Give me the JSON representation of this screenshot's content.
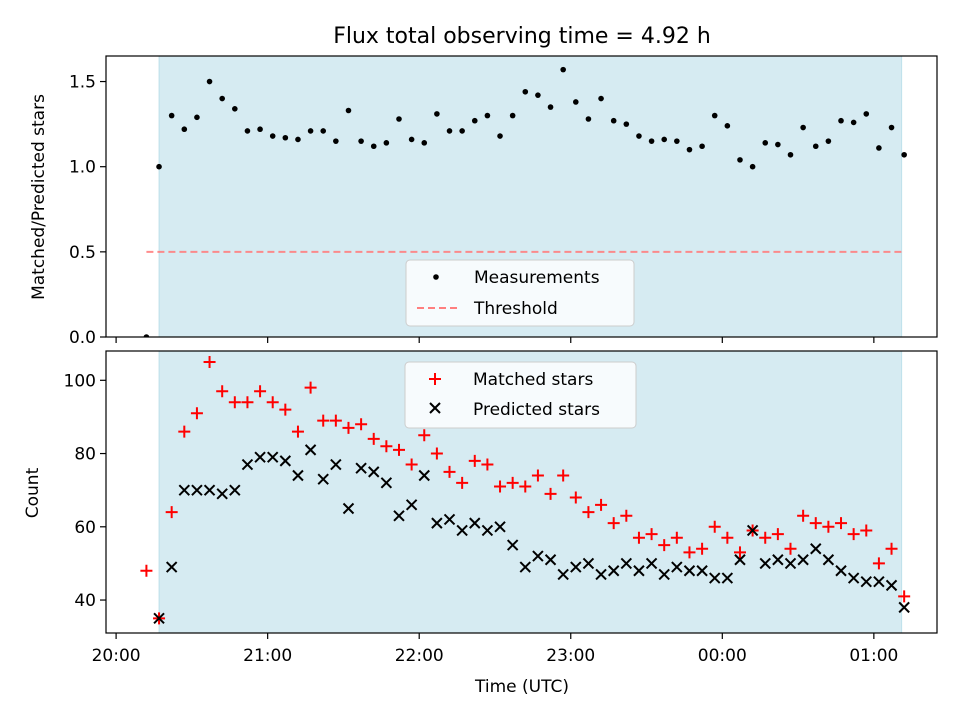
{
  "title": "Flux total observing time = 4.92 h",
  "xlabel": "Time (UTC)",
  "xticks": [
    "20:00",
    "21:00",
    "22:00",
    "23:00",
    "00:00",
    "01:00"
  ],
  "chart_data": [
    {
      "type": "scatter",
      "ylabel": "Matched/Predicted stars",
      "ylim": [
        0,
        1.65
      ],
      "yticks": [
        "0.0",
        "0.5",
        "1.0",
        "1.5"
      ],
      "shaded_interval": [
        "20:17",
        "01:11"
      ],
      "legend": [
        "Measurements",
        "Threshold"
      ],
      "legend_position": "lower center",
      "threshold": {
        "name": "Threshold",
        "value": 0.5,
        "x_range": [
          "20:12",
          "01:11"
        ],
        "color": "#ff7f7f"
      },
      "series": [
        {
          "name": "Measurements",
          "x": [
            "20:12",
            "20:17",
            "20:22",
            "20:27",
            "20:32",
            "20:37",
            "20:42",
            "20:47",
            "20:52",
            "20:57",
            "21:02",
            "21:07",
            "21:12",
            "21:17",
            "21:22",
            "21:27",
            "21:32",
            "21:37",
            "21:42",
            "21:47",
            "21:52",
            "21:57",
            "22:02",
            "22:07",
            "22:12",
            "22:17",
            "22:22",
            "22:27",
            "22:32",
            "22:37",
            "22:42",
            "22:47",
            "22:52",
            "22:57",
            "23:02",
            "23:07",
            "23:12",
            "23:17",
            "23:22",
            "23:27",
            "23:32",
            "23:37",
            "23:42",
            "23:47",
            "23:52",
            "23:57",
            "00:02",
            "00:07",
            "00:12",
            "00:17",
            "00:22",
            "00:27",
            "00:32",
            "00:37",
            "00:42",
            "00:47",
            "00:52",
            "00:57",
            "01:02",
            "01:07",
            "01:12"
          ],
          "y": [
            0.0,
            1.0,
            1.3,
            1.22,
            1.29,
            1.5,
            1.4,
            1.34,
            1.21,
            1.22,
            1.18,
            1.17,
            1.16,
            1.21,
            1.21,
            1.15,
            1.33,
            1.15,
            1.12,
            1.14,
            1.28,
            1.16,
            1.14,
            1.31,
            1.21,
            1.21,
            1.27,
            1.3,
            1.18,
            1.3,
            1.44,
            1.42,
            1.35,
            1.57,
            1.38,
            1.28,
            1.4,
            1.27,
            1.25,
            1.18,
            1.15,
            1.16,
            1.15,
            1.1,
            1.12,
            1.3,
            1.24,
            1.04,
            1.0,
            1.14,
            1.13,
            1.07,
            1.23,
            1.12,
            1.15,
            1.27,
            1.26,
            1.31,
            1.11,
            1.23,
            1.07
          ],
          "color": "#000000",
          "marker": "dot"
        }
      ]
    },
    {
      "type": "scatter",
      "ylabel": "Count",
      "ylim": [
        31,
        108
      ],
      "yticks": [
        "40",
        "60",
        "80",
        "100"
      ],
      "shaded_interval": [
        "20:17",
        "01:11"
      ],
      "legend": [
        "Matched stars",
        "Predicted stars"
      ],
      "legend_position": "upper center",
      "series": [
        {
          "name": "Matched stars",
          "x": [
            "20:12",
            "20:17",
            "20:22",
            "20:27",
            "20:32",
            "20:37",
            "20:42",
            "20:47",
            "20:52",
            "20:57",
            "21:02",
            "21:07",
            "21:12",
            "21:17",
            "21:22",
            "21:27",
            "21:32",
            "21:37",
            "21:42",
            "21:47",
            "21:52",
            "21:57",
            "22:02",
            "22:07",
            "22:12",
            "22:17",
            "22:22",
            "22:27",
            "22:32",
            "22:37",
            "22:42",
            "22:47",
            "22:52",
            "22:57",
            "23:02",
            "23:07",
            "23:12",
            "23:17",
            "23:22",
            "23:27",
            "23:32",
            "23:37",
            "23:42",
            "23:47",
            "23:52",
            "23:57",
            "00:02",
            "00:07",
            "00:12",
            "00:17",
            "00:22",
            "00:27",
            "00:32",
            "00:37",
            "00:42",
            "00:47",
            "00:52",
            "00:57",
            "01:02",
            "01:07",
            "01:12"
          ],
          "y": [
            48,
            35,
            64,
            86,
            91,
            105,
            97,
            94,
            94,
            97,
            94,
            92,
            86,
            98,
            89,
            89,
            87,
            88,
            84,
            82,
            81,
            77,
            85,
            80,
            75,
            72,
            78,
            77,
            71,
            72,
            71,
            74,
            69,
            74,
            68,
            64,
            66,
            61,
            63,
            57,
            58,
            55,
            57,
            53,
            54,
            60,
            57,
            53,
            59,
            57,
            58,
            54,
            63,
            61,
            60,
            61,
            58,
            59,
            50,
            54,
            41
          ],
          "color": "#ff0000",
          "marker": "plus"
        },
        {
          "name": "Predicted stars",
          "x": [
            "20:17",
            "20:22",
            "20:27",
            "20:32",
            "20:37",
            "20:42",
            "20:47",
            "20:52",
            "20:57",
            "21:02",
            "21:07",
            "21:12",
            "21:17",
            "21:22",
            "21:27",
            "21:32",
            "21:37",
            "21:42",
            "21:47",
            "21:52",
            "21:57",
            "22:02",
            "22:07",
            "22:12",
            "22:17",
            "22:22",
            "22:27",
            "22:32",
            "22:37",
            "22:42",
            "22:47",
            "22:52",
            "22:57",
            "23:02",
            "23:07",
            "23:12",
            "23:17",
            "23:22",
            "23:27",
            "23:32",
            "23:37",
            "23:42",
            "23:47",
            "23:52",
            "23:57",
            "00:02",
            "00:07",
            "00:12",
            "00:17",
            "00:22",
            "00:27",
            "00:32",
            "00:37",
            "00:42",
            "00:47",
            "00:52",
            "00:57",
            "01:02",
            "01:07",
            "01:12"
          ],
          "y": [
            35,
            49,
            70,
            70,
            70,
            69,
            70,
            77,
            79,
            79,
            78,
            74,
            81,
            73,
            77,
            65,
            76,
            75,
            72,
            63,
            66,
            74,
            61,
            62,
            59,
            61,
            59,
            60,
            55,
            49,
            52,
            51,
            47,
            49,
            50,
            47,
            48,
            50,
            48,
            50,
            47,
            49,
            48,
            48,
            46,
            46,
            51,
            59,
            50,
            51,
            50,
            51,
            54,
            51,
            48,
            46,
            45,
            45,
            44,
            38
          ],
          "color": "#000000",
          "marker": "x"
        }
      ]
    }
  ]
}
